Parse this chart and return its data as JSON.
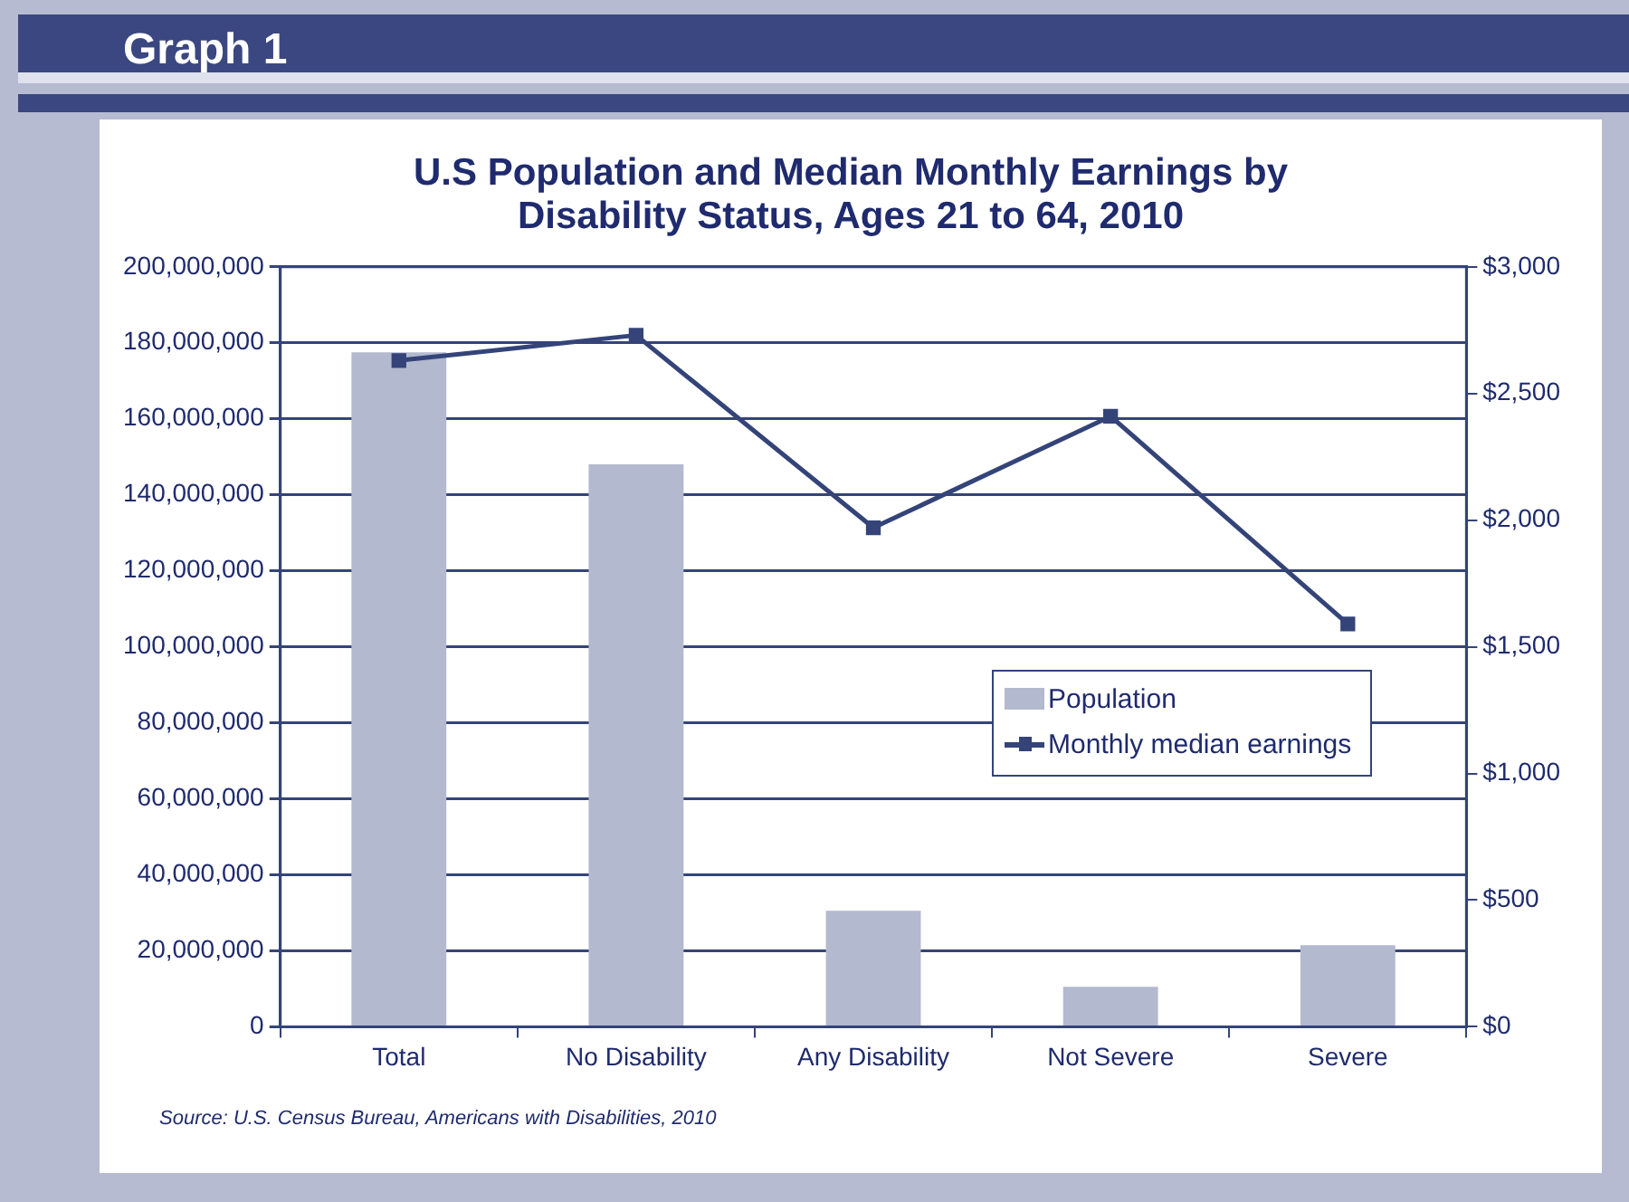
{
  "chart_data": {
    "type": "bar",
    "title": "U.S Population and Median Monthly Earnings by Disability Status, Ages 21 to 64, 2010",
    "annotations": [
      "Graph 1",
      "Source: U.S. Census Bureau, Americans with Disabilities, 2010"
    ],
    "categories": [
      "Total",
      "No Disability",
      "Any Disability",
      "Not Severe",
      "Severe"
    ],
    "series": [
      {
        "name": "Population",
        "color": "#b3b9ce",
        "values": [
          177500000,
          148000000,
          30500000,
          10500000,
          21500000
        ]
      },
      {
        "name": "Monthly median earnings",
        "type": "line",
        "axis": "y2",
        "color": "#344479",
        "values": [
          2630,
          2730,
          1970,
          2410,
          1590
        ]
      }
    ],
    "ylim": [
      0,
      200000000
    ],
    "yticks": [
      {
        "value": 0,
        "label": "0"
      },
      {
        "value": 20000000,
        "label": "20,000,000"
      },
      {
        "value": 40000000,
        "label": "40,000,000"
      },
      {
        "value": 60000000,
        "label": "60,000,000"
      },
      {
        "value": 80000000,
        "label": "80,000,000"
      },
      {
        "value": 100000000,
        "label": "100,000,000"
      },
      {
        "value": 120000000,
        "label": "120,000,000"
      },
      {
        "value": 140000000,
        "label": "140,000,000"
      },
      {
        "value": 160000000,
        "label": "160,000,000"
      },
      {
        "value": 180000000,
        "label": "180,000,000"
      },
      {
        "value": 200000000,
        "label": "200,000,000"
      }
    ],
    "y2lim": [
      0,
      3000
    ],
    "y2ticks": [
      {
        "value": 0,
        "label": "$0"
      },
      {
        "value": 500,
        "label": "$500"
      },
      {
        "value": 1000,
        "label": "$1,000"
      },
      {
        "value": 1500,
        "label": "$1,500"
      },
      {
        "value": 2000,
        "label": "$2,000"
      },
      {
        "value": 2500,
        "label": "$2,500"
      },
      {
        "value": 3000,
        "label": "$3,000"
      }
    ],
    "grid": "y",
    "legend": "right",
    "marker": "square",
    "line_style": "solid"
  }
}
